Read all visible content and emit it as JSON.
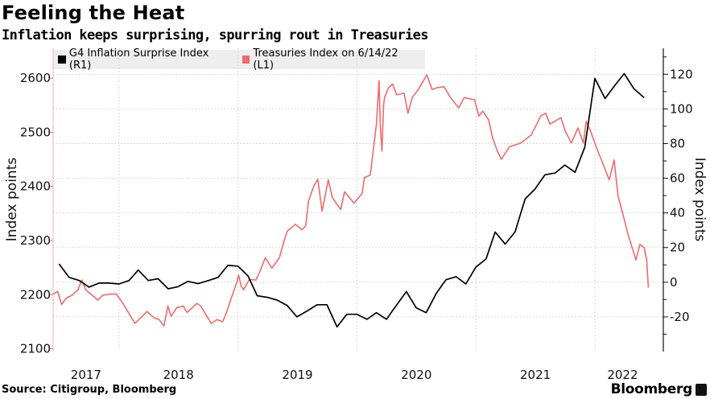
{
  "header": {
    "title": "Feeling the Heat",
    "subtitle": "Inflation keeps surprising, spurring rout in Treasuries"
  },
  "footer": {
    "source": "Source: Citigroup, Bloomberg",
    "brand": "Bloomberg"
  },
  "chart_data": {
    "type": "line",
    "title": "Feeling the Heat",
    "subtitle": "Inflation keeps surprising, spurring rout in Treasuries",
    "legend_placement": "top-left",
    "grid": true,
    "x_axis": {
      "type": "date",
      "ticks": [
        "2017",
        "2018",
        "2019",
        "2020",
        "2021",
        "2022"
      ],
      "range": [
        "2017-06-14",
        "2022-06-20"
      ]
    },
    "y_left": {
      "label": "Index points",
      "range": [
        2095,
        2655
      ],
      "ticks": [
        2100,
        2200,
        2300,
        2400,
        2500,
        2600
      ]
    },
    "y_right": {
      "label": "Index points",
      "range": [
        -40,
        135
      ],
      "ticks": [
        -20,
        0,
        20,
        40,
        60,
        80,
        100,
        120
      ]
    },
    "series": [
      {
        "name": "G4 Inflation Surprise Index (R1)",
        "axis": "right",
        "color": "#000000",
        "points": [
          [
            "2017-07-01",
            10.6
          ],
          [
            "2017-08-01",
            2.8
          ],
          [
            "2017-09-01",
            1
          ],
          [
            "2017-10-01",
            -2.8
          ],
          [
            "2017-11-01",
            -0.5
          ],
          [
            "2017-12-01",
            -0.5
          ],
          [
            "2018-01-01",
            -1
          ],
          [
            "2018-02-01",
            1
          ],
          [
            "2018-03-01",
            7
          ],
          [
            "2018-04-01",
            1
          ],
          [
            "2018-05-01",
            2
          ],
          [
            "2018-06-01",
            -3.8
          ],
          [
            "2018-07-01",
            -2.6
          ],
          [
            "2018-08-01",
            0.5
          ],
          [
            "2018-09-01",
            -0.8
          ],
          [
            "2018-10-01",
            0.9
          ],
          [
            "2018-11-01",
            2.8
          ],
          [
            "2018-12-01",
            9.7
          ],
          [
            "2019-01-01",
            9.3
          ],
          [
            "2019-02-01",
            3.6
          ],
          [
            "2019-03-01",
            -7.8
          ],
          [
            "2019-04-01",
            -8.7
          ],
          [
            "2019-05-01",
            -10.3
          ],
          [
            "2019-06-01",
            -13.4
          ],
          [
            "2019-07-01",
            -20
          ],
          [
            "2019-08-01",
            -16.6
          ],
          [
            "2019-09-01",
            -13
          ],
          [
            "2019-10-01",
            -13
          ],
          [
            "2019-11-01",
            -25.8
          ],
          [
            "2019-12-01",
            -18.5
          ],
          [
            "2020-01-01",
            -18.5
          ],
          [
            "2020-02-01",
            -21.4
          ],
          [
            "2020-03-01",
            -17.6
          ],
          [
            "2020-04-01",
            -21.4
          ],
          [
            "2020-05-01",
            -13.4
          ],
          [
            "2020-06-01",
            -5.4
          ],
          [
            "2020-07-01",
            -14.7
          ],
          [
            "2020-08-01",
            -17.6
          ],
          [
            "2020-09-01",
            -6.5
          ],
          [
            "2020-10-01",
            1.4
          ],
          [
            "2020-11-01",
            3.2
          ],
          [
            "2020-12-01",
            -1
          ],
          [
            "2021-01-01",
            8.8
          ],
          [
            "2021-02-01",
            13.4
          ],
          [
            "2021-03-01",
            29
          ],
          [
            "2021-04-01",
            22
          ],
          [
            "2021-05-01",
            29
          ],
          [
            "2021-06-01",
            48
          ],
          [
            "2021-07-01",
            53.7
          ],
          [
            "2021-08-01",
            62
          ],
          [
            "2021-09-01",
            63
          ],
          [
            "2021-10-01",
            67.6
          ],
          [
            "2021-11-01",
            63.4
          ],
          [
            "2021-12-01",
            77.8
          ],
          [
            "2022-01-01",
            117.6
          ],
          [
            "2022-02-01",
            106
          ],
          [
            "2022-03-01",
            113
          ],
          [
            "2022-04-01",
            120.4
          ],
          [
            "2022-05-01",
            111.6
          ],
          [
            "2022-06-01",
            106.5
          ]
        ]
      },
      {
        "name": "Treasuries Index on 6/14/22 (L1)",
        "axis": "left",
        "color": "#f06a6a",
        "points": [
          [
            "2017-06-14",
            2201
          ],
          [
            "2017-06-27",
            2206
          ],
          [
            "2017-07-09",
            2182
          ],
          [
            "2017-07-24",
            2194
          ],
          [
            "2017-08-10",
            2199
          ],
          [
            "2017-08-28",
            2209
          ],
          [
            "2017-09-09",
            2227
          ],
          [
            "2017-09-21",
            2209
          ],
          [
            "2017-10-11",
            2199
          ],
          [
            "2017-10-28",
            2190
          ],
          [
            "2017-11-12",
            2199
          ],
          [
            "2017-12-04",
            2201
          ],
          [
            "2017-12-24",
            2201
          ],
          [
            "2018-01-10",
            2187
          ],
          [
            "2018-01-30",
            2167
          ],
          [
            "2018-02-19",
            2147
          ],
          [
            "2018-03-08",
            2157
          ],
          [
            "2018-03-28",
            2169
          ],
          [
            "2018-04-19",
            2157
          ],
          [
            "2018-05-04",
            2154
          ],
          [
            "2018-05-19",
            2142
          ],
          [
            "2018-05-31",
            2179
          ],
          [
            "2018-06-10",
            2160
          ],
          [
            "2018-06-27",
            2176
          ],
          [
            "2018-07-17",
            2179
          ],
          [
            "2018-07-29",
            2167
          ],
          [
            "2018-08-28",
            2184
          ],
          [
            "2018-09-09",
            2179
          ],
          [
            "2018-09-27",
            2161
          ],
          [
            "2018-10-11",
            2147
          ],
          [
            "2018-10-29",
            2154
          ],
          [
            "2018-11-15",
            2150
          ],
          [
            "2018-11-27",
            2167
          ],
          [
            "2018-12-10",
            2191
          ],
          [
            "2018-12-29",
            2224
          ],
          [
            "2019-01-03",
            2236
          ],
          [
            "2019-01-11",
            2216
          ],
          [
            "2019-01-18",
            2209
          ],
          [
            "2019-02-05",
            2228
          ],
          [
            "2019-02-25",
            2227
          ],
          [
            "2019-03-08",
            2241
          ],
          [
            "2019-03-26",
            2268
          ],
          [
            "2019-04-15",
            2249
          ],
          [
            "2019-05-08",
            2268
          ],
          [
            "2019-05-22",
            2298
          ],
          [
            "2019-06-01",
            2317
          ],
          [
            "2019-06-26",
            2330
          ],
          [
            "2019-07-16",
            2320
          ],
          [
            "2019-07-28",
            2327
          ],
          [
            "2019-08-05",
            2372
          ],
          [
            "2019-08-22",
            2401
          ],
          [
            "2019-09-03",
            2413
          ],
          [
            "2019-09-16",
            2354
          ],
          [
            "2019-10-05",
            2412
          ],
          [
            "2019-10-18",
            2379
          ],
          [
            "2019-11-12",
            2357
          ],
          [
            "2019-11-24",
            2390
          ],
          [
            "2019-12-23",
            2369
          ],
          [
            "2020-01-17",
            2387
          ],
          [
            "2020-01-24",
            2416
          ],
          [
            "2020-02-11",
            2421
          ],
          [
            "2020-02-23",
            2480
          ],
          [
            "2020-03-01",
            2515
          ],
          [
            "2020-03-09",
            2595
          ],
          [
            "2020-03-13",
            2510
          ],
          [
            "2020-03-18",
            2465
          ],
          [
            "2020-03-23",
            2550
          ],
          [
            "2020-03-26",
            2564
          ],
          [
            "2020-04-07",
            2582
          ],
          [
            "2020-04-20",
            2589
          ],
          [
            "2020-05-02",
            2569
          ],
          [
            "2020-05-25",
            2572
          ],
          [
            "2020-06-06",
            2535
          ],
          [
            "2020-06-19",
            2564
          ],
          [
            "2020-07-08",
            2579
          ],
          [
            "2020-08-03",
            2606
          ],
          [
            "2020-08-19",
            2579
          ],
          [
            "2020-09-03",
            2582
          ],
          [
            "2020-09-25",
            2584
          ],
          [
            "2020-10-15",
            2564
          ],
          [
            "2020-11-09",
            2545
          ],
          [
            "2020-11-26",
            2564
          ],
          [
            "2020-12-28",
            2560
          ],
          [
            "2021-01-10",
            2530
          ],
          [
            "2021-01-22",
            2539
          ],
          [
            "2021-02-09",
            2523
          ],
          [
            "2021-02-21",
            2490
          ],
          [
            "2021-03-08",
            2465
          ],
          [
            "2021-03-20",
            2450
          ],
          [
            "2021-04-14",
            2473
          ],
          [
            "2021-05-19",
            2480
          ],
          [
            "2021-06-20",
            2495
          ],
          [
            "2021-07-19",
            2530
          ],
          [
            "2021-08-03",
            2535
          ],
          [
            "2021-08-16",
            2515
          ],
          [
            "2021-09-19",
            2527
          ],
          [
            "2021-10-02",
            2502
          ],
          [
            "2021-10-21",
            2480
          ],
          [
            "2021-11-10",
            2508
          ],
          [
            "2021-11-27",
            2480
          ],
          [
            "2021-12-05",
            2520
          ],
          [
            "2021-12-17",
            2505
          ],
          [
            "2022-01-10",
            2465
          ],
          [
            "2022-01-23",
            2446
          ],
          [
            "2022-02-14",
            2412
          ],
          [
            "2022-03-01",
            2449
          ],
          [
            "2022-03-13",
            2382
          ],
          [
            "2022-03-26",
            2353
          ],
          [
            "2022-04-12",
            2313
          ],
          [
            "2022-04-25",
            2287
          ],
          [
            "2022-05-07",
            2264
          ],
          [
            "2022-05-19",
            2293
          ],
          [
            "2022-06-01",
            2287
          ],
          [
            "2022-06-09",
            2264
          ],
          [
            "2022-06-14",
            2213
          ]
        ]
      }
    ]
  }
}
